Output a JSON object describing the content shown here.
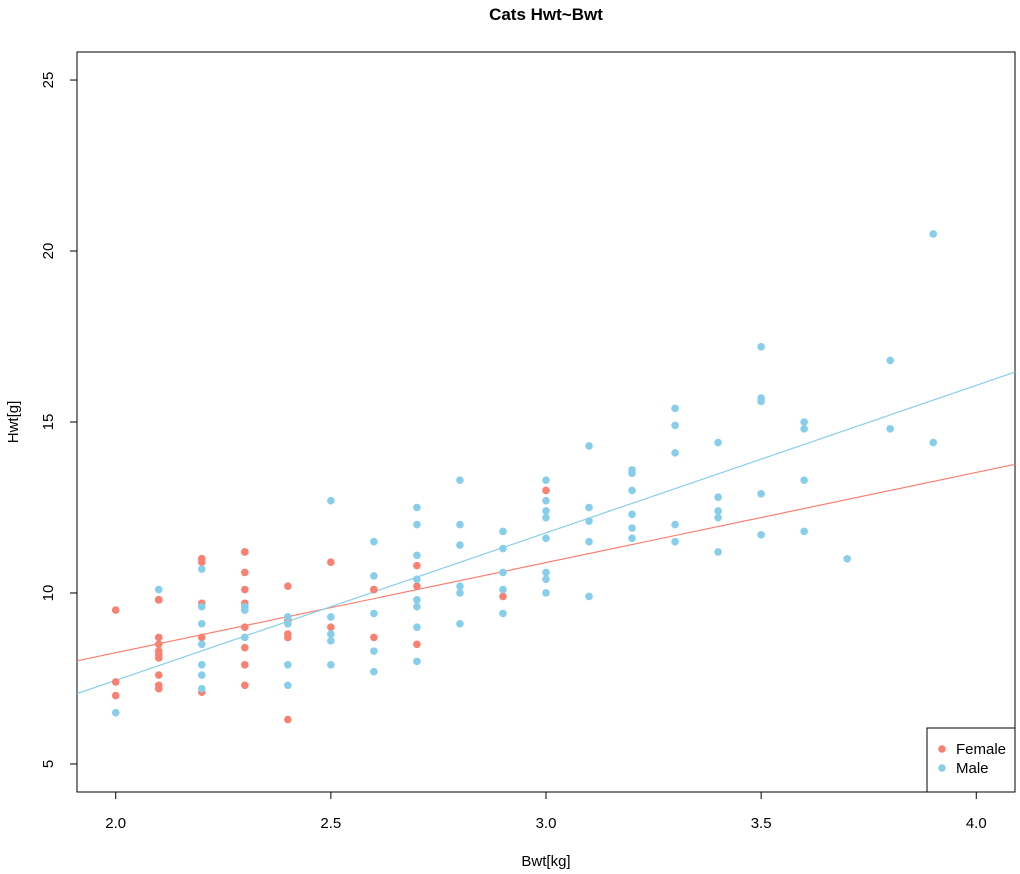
{
  "chart_data": {
    "type": "scatter",
    "title": "Cats Hwt~Bwt",
    "xlabel": "Bwt[kg]",
    "ylabel": "Hwt[g]",
    "xlim": [
      1.91,
      4.09
    ],
    "ylim": [
      4.18,
      25.82
    ],
    "xticks": [
      2.0,
      2.5,
      3.0,
      3.5,
      4.0
    ],
    "xtick_labels": [
      "2.0",
      "2.5",
      "3.0",
      "3.5",
      "4.0"
    ],
    "yticks": [
      5,
      10,
      15,
      20,
      25
    ],
    "ytick_labels": [
      "5",
      "10",
      "15",
      "20",
      "25"
    ],
    "legend_position": "bottom-right",
    "series": [
      {
        "name": "Female",
        "color": "#FA8072",
        "x": [
          2.0,
          2.0,
          2.0,
          2.1,
          2.1,
          2.1,
          2.1,
          2.1,
          2.1,
          2.1,
          2.1,
          2.1,
          2.1,
          2.1,
          2.2,
          2.2,
          2.2,
          2.2,
          2.2,
          2.2,
          2.3,
          2.3,
          2.3,
          2.3,
          2.3,
          2.3,
          2.3,
          2.3,
          2.3,
          2.3,
          2.3,
          2.4,
          2.4,
          2.4,
          2.4,
          2.4,
          2.5,
          2.5,
          2.6,
          2.6,
          2.6,
          2.7,
          2.7,
          2.7,
          2.9,
          3.0
        ],
        "y": [
          7.0,
          7.4,
          9.5,
          7.2,
          7.3,
          7.6,
          8.1,
          8.2,
          8.3,
          8.5,
          8.7,
          9.8,
          9.8,
          9.8,
          7.1,
          8.7,
          9.7,
          10.9,
          11.0,
          11.0,
          7.3,
          7.9,
          8.4,
          9.0,
          9.5,
          9.6,
          9.7,
          10.1,
          10.6,
          11.2,
          11.2,
          6.3,
          8.7,
          8.8,
          9.2,
          10.2,
          9.0,
          10.9,
          8.7,
          10.1,
          10.1,
          8.5,
          10.2,
          10.8,
          9.9,
          13.0
        ],
        "regression": {
          "intercept": 2.981,
          "slope": 2.636
        }
      },
      {
        "name": "Male",
        "color": "#87CEEB",
        "x": [
          2.0,
          2.1,
          2.2,
          2.2,
          2.2,
          2.2,
          2.2,
          2.2,
          2.2,
          2.3,
          2.3,
          2.3,
          2.4,
          2.4,
          2.4,
          2.4,
          2.5,
          2.5,
          2.5,
          2.5,
          2.5,
          2.6,
          2.6,
          2.6,
          2.6,
          2.6,
          2.7,
          2.7,
          2.7,
          2.7,
          2.7,
          2.7,
          2.7,
          2.7,
          2.8,
          2.8,
          2.8,
          2.8,
          2.8,
          2.8,
          2.9,
          2.9,
          2.9,
          2.9,
          2.9,
          3.0,
          3.0,
          3.0,
          3.0,
          3.0,
          3.0,
          3.0,
          3.0,
          3.1,
          3.1,
          3.1,
          3.1,
          3.1,
          3.2,
          3.2,
          3.2,
          3.2,
          3.2,
          3.2,
          3.3,
          3.3,
          3.3,
          3.3,
          3.3,
          3.4,
          3.4,
          3.4,
          3.4,
          3.4,
          3.5,
          3.5,
          3.5,
          3.5,
          3.5,
          3.6,
          3.6,
          3.6,
          3.6,
          3.7,
          3.8,
          3.8,
          3.9,
          3.9
        ],
        "y": [
          6.5,
          10.1,
          7.2,
          7.6,
          7.9,
          8.5,
          9.1,
          9.6,
          10.7,
          8.7,
          9.6,
          9.5,
          7.3,
          7.9,
          9.1,
          9.3,
          7.9,
          8.6,
          8.8,
          9.3,
          12.7,
          7.7,
          8.3,
          9.4,
          10.5,
          11.5,
          8.0,
          9.0,
          9.6,
          9.8,
          10.4,
          11.1,
          12.0,
          12.5,
          9.1,
          10.0,
          10.2,
          11.4,
          12.0,
          13.3,
          9.4,
          10.1,
          10.6,
          11.3,
          11.8,
          10.0,
          10.4,
          10.6,
          11.6,
          12.2,
          12.4,
          12.7,
          13.3,
          9.9,
          11.5,
          12.1,
          12.5,
          14.3,
          11.6,
          11.9,
          12.3,
          13.0,
          13.5,
          13.6,
          11.5,
          12.0,
          14.1,
          14.9,
          15.4,
          11.2,
          12.2,
          12.4,
          12.8,
          14.4,
          11.7,
          12.9,
          15.6,
          15.7,
          17.2,
          11.8,
          13.3,
          14.8,
          15.0,
          11.0,
          14.8,
          16.8,
          14.4,
          20.5
        ],
        "regression": {
          "intercept": -1.181,
          "slope": 4.313
        }
      }
    ]
  }
}
